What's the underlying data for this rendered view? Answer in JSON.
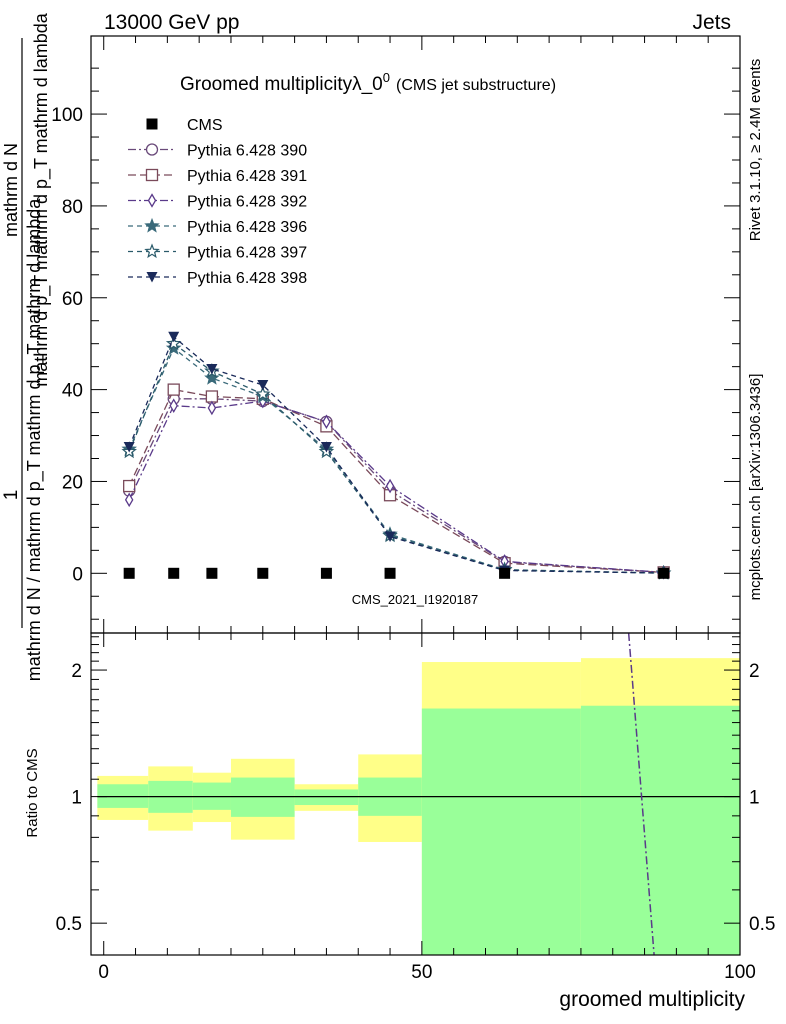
{
  "header": {
    "left": "13000 GeV pp",
    "right": "Jets",
    "side_events": "Rivet 3.1.10, ≥ 2.4M events",
    "side_site": "mcplots.cern.ch [arXiv:1306.3436]",
    "watermark": "CMS_2021_I1920187"
  },
  "colors": {
    "data": "#000000",
    "band_inner": "#99ff99",
    "band_outer": "#ffff88",
    "gray_text": "#888888"
  },
  "chart_data": [
    {
      "type": "line",
      "title_main": "Groomed multiplicityλ_0",
      "title_sup": "0",
      "title_sub": "(CMS jet substructure)",
      "ylabel_numer": "mathrm d²N",
      "ylabel_denom": "mathrm d N / mathrm d p_T mathrm d p_T mathrm d lambda",
      "ylabel_line_numer": "mathrm d N",
      "ylabel_line_denom": "mathrm d p_T mathrm d p_T mathrm d lambda",
      "ylabel_one": "1",
      "ylim": [
        -13,
        117
      ],
      "xlim": [
        -2,
        100
      ],
      "yticks": [
        0,
        20,
        40,
        60,
        80,
        100
      ],
      "ytick_labels": [
        "0",
        "20",
        "40",
        "60",
        "80",
        "100"
      ],
      "x": [
        4,
        11,
        17,
        25,
        35,
        45,
        63,
        88
      ],
      "series": [
        {
          "name": "CMS",
          "marker": "square",
          "color": "#000000",
          "dash": "",
          "values": [
            0,
            0,
            0,
            0,
            0,
            0,
            0,
            0
          ]
        },
        {
          "name": "Pythia 6.428 390",
          "marker": "circle",
          "color": "#6a4a7a",
          "dash": "8,3,2,3",
          "values": [
            18,
            38,
            38,
            37.5,
            33,
            18,
            2.5,
            0.2
          ]
        },
        {
          "name": "Pythia 6.428 391",
          "marker": "square-open",
          "color": "#7a4a5a",
          "dash": "8,4",
          "values": [
            19,
            40,
            38.5,
            38,
            32,
            17,
            2.2,
            0.2
          ]
        },
        {
          "name": "Pythia 6.428 392",
          "marker": "diamond",
          "color": "#5a3a8a",
          "dash": "8,3,2,3",
          "values": [
            16,
            36.5,
            36,
            37.5,
            33,
            19,
            2.6,
            0.2
          ]
        },
        {
          "name": "Pythia 6.428 396",
          "marker": "star-filled",
          "color": "#3a6a7a",
          "dash": "5,4",
          "values": [
            27,
            49,
            42.5,
            38.5,
            27,
            8.5,
            0.8,
            0.05
          ]
        },
        {
          "name": "Pythia 6.428 397",
          "marker": "star-open",
          "color": "#2a5a6a",
          "dash": "5,4",
          "values": [
            26.5,
            50,
            44,
            39,
            26.5,
            8.2,
            0.7,
            0.05
          ]
        },
        {
          "name": "Pythia 6.428 398",
          "marker": "triangle-down",
          "color": "#1a2a5a",
          "dash": "5,4",
          "values": [
            27.5,
            51.5,
            44.5,
            41,
            27.5,
            8,
            0.6,
            0.05
          ]
        }
      ]
    },
    {
      "type": "area",
      "ylabel": "Ratio to CMS",
      "xlabel": "groomed multiplicity",
      "xlim": [
        -2,
        100
      ],
      "ylim": [
        0.42,
        2.45
      ],
      "log_scale_y": true,
      "xticks": [
        0,
        50,
        100
      ],
      "xtick_labels": [
        "0",
        "50",
        "100"
      ],
      "yticks": [
        0.5,
        1,
        2
      ],
      "ytick_labels": [
        "0.5",
        "1",
        "2"
      ],
      "reference_line": 1,
      "bands": [
        {
          "x0": -1,
          "x1": 7,
          "inner": [
            0.94,
            1.07
          ],
          "outer": [
            0.88,
            1.12
          ]
        },
        {
          "x0": 7,
          "x1": 14,
          "inner": [
            0.915,
            1.09
          ],
          "outer": [
            0.83,
            1.18
          ]
        },
        {
          "x0": 14,
          "x1": 20,
          "inner": [
            0.93,
            1.08
          ],
          "outer": [
            0.87,
            1.14
          ]
        },
        {
          "x0": 20,
          "x1": 30,
          "inner": [
            0.895,
            1.11
          ],
          "outer": [
            0.79,
            1.23
          ]
        },
        {
          "x0": 30,
          "x1": 40,
          "inner": [
            0.955,
            1.04
          ],
          "outer": [
            0.925,
            1.07
          ]
        },
        {
          "x0": 40,
          "x1": 50,
          "inner": [
            0.9,
            1.11
          ],
          "outer": [
            0.78,
            1.26
          ]
        },
        {
          "x0": 50,
          "x1": 75,
          "inner": [
            0.4,
            1.62
          ],
          "outer": [
            0.485,
            2.09
          ]
        },
        {
          "x0": 75,
          "x1": 100,
          "inner": [
            0.4,
            1.645
          ],
          "outer": [
            0.4,
            2.135
          ]
        }
      ],
      "ratio_line": {
        "name": "Pythia 6.428 392",
        "color": "#5a3a8a",
        "points": [
          [
            82.5,
            2.5
          ],
          [
            86.5,
            0.4
          ]
        ]
      }
    }
  ]
}
